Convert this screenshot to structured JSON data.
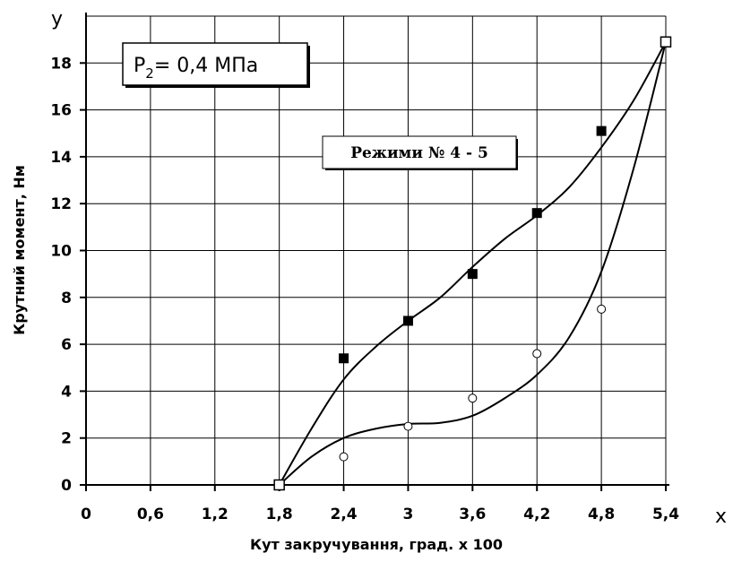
{
  "chart_data": {
    "type": "scatter",
    "xlabel": "Кут закручування, град. х 100",
    "ylabel": "Крутний момент, Нм",
    "x_axis_letter": "х",
    "y_axis_letter": "у",
    "xlim": [
      0,
      5.4
    ],
    "ylim": [
      0,
      20
    ],
    "x_ticks": [
      0,
      0.6,
      1.2,
      1.8,
      2.4,
      3,
      3.6,
      4.2,
      4.8,
      5.4
    ],
    "x_tick_labels": [
      "0",
      "0,6",
      "1,2",
      "1,8",
      "2,4",
      "3",
      "3,6",
      "4,2",
      "4,8",
      "5,4"
    ],
    "y_ticks": [
      0,
      2,
      4,
      6,
      8,
      10,
      12,
      14,
      16,
      18
    ],
    "y_tick_labels": [
      "0",
      "2",
      "4",
      "6",
      "8",
      "10",
      "12",
      "14",
      "16",
      "18"
    ],
    "grid": true,
    "annotations": {
      "pressure": {
        "main": "P",
        "sub": "2",
        "rest": "= 0,4 МПа"
      },
      "mode": "Режими № 4 - 5"
    },
    "series": [
      {
        "marker": "filled-square",
        "x": [
          1.8,
          2.4,
          3.0,
          3.6,
          4.2,
          4.8,
          5.4
        ],
        "y": [
          0,
          5.4,
          7.0,
          9.0,
          11.6,
          15.1,
          18.9
        ]
      },
      {
        "marker": "open-circle",
        "x": [
          1.8,
          2.4,
          3.0,
          3.6,
          4.2,
          4.8,
          5.4
        ],
        "y": [
          0,
          1.2,
          2.5,
          3.7,
          5.6,
          7.5,
          18.9
        ]
      }
    ],
    "curves": [
      {
        "for": "filled-square",
        "x": [
          1.8,
          2.1,
          2.4,
          2.7,
          3.0,
          3.3,
          3.6,
          3.9,
          4.2,
          4.5,
          4.8,
          5.1,
          5.4
        ],
        "y": [
          0,
          2.4,
          4.5,
          5.9,
          7.0,
          8.0,
          9.3,
          10.5,
          11.5,
          12.7,
          14.4,
          16.4,
          18.9
        ]
      },
      {
        "for": "open-circle",
        "x": [
          1.8,
          2.1,
          2.4,
          2.7,
          3.0,
          3.3,
          3.6,
          3.9,
          4.2,
          4.5,
          4.8,
          5.1,
          5.4
        ],
        "y": [
          0,
          1.2,
          2.0,
          2.4,
          2.6,
          2.65,
          2.95,
          3.7,
          4.7,
          6.3,
          9.1,
          13.5,
          18.9
        ]
      }
    ]
  }
}
